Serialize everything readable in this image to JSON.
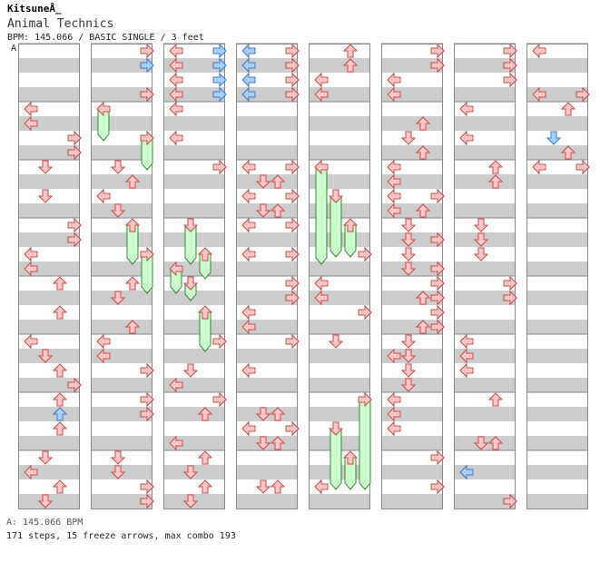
{
  "header": {
    "artist": "KitsuneÂ_",
    "title": "Animal Technics",
    "info": "BPM: 145.066 / BASIC SINGLE / 3 feet",
    "bpm_marker": "A"
  },
  "footer": {
    "bpm_legend": "A: 145.066 BPM",
    "stats": "171 steps, 15 freeze arrows, max combo 193"
  },
  "colors": {
    "arrow_red_fill": "#ffc8c8",
    "arrow_red_stroke": "#c84848",
    "arrow_blue_fill": "#a8d0ff",
    "arrow_blue_stroke": "#3878c8",
    "freeze_fill": "#ccffcc",
    "freeze_stroke": "#338833",
    "stripe": "#cccccc",
    "grid_border": "#888888"
  },
  "chart_data": {
    "type": "stepchart",
    "measures_per_column": 8,
    "columns": 8,
    "lanes": [
      "left",
      "down",
      "up",
      "right"
    ],
    "notes": [
      [
        0,
        1,
        3,
        "red"
      ],
      [
        0,
        2,
        2,
        "blue"
      ],
      [
        0,
        3,
        3,
        "red"
      ],
      [
        0,
        5,
        1,
        "blue"
      ],
      [
        0,
        7,
        3,
        "red"
      ],
      [
        0,
        0,
        0,
        "red"
      ],
      [
        0,
        1,
        0,
        "red"
      ],
      [
        0,
        2,
        0,
        "red"
      ],
      [
        0,
        3,
        0,
        "red"
      ],
      [
        0,
        0,
        3,
        "blue"
      ],
      [
        0,
        1,
        3,
        "blue"
      ],
      [
        0,
        2,
        3,
        "blue"
      ],
      [
        0,
        3,
        3,
        "blue"
      ],
      [
        0,
        0,
        0,
        "blue"
      ],
      [
        0,
        1,
        0,
        "blue"
      ],
      [
        0,
        2,
        0,
        "blue"
      ],
      [
        0,
        3,
        0,
        "blue"
      ],
      [
        0,
        0,
        3,
        "red"
      ],
      [
        0,
        1,
        3,
        "red"
      ],
      [
        0,
        2,
        3,
        "red"
      ],
      [
        0,
        3,
        3,
        "red"
      ]
    ]
  }
}
